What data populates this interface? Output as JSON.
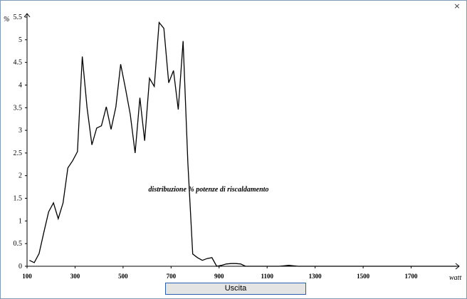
{
  "window": {
    "close_glyph": "×",
    "close_icon": "close-icon"
  },
  "buttons": {
    "exit_label": "Uscita"
  },
  "chart_data": {
    "type": "line",
    "title": "distribuzione % potenze di riscaldamento",
    "ylabel": "%",
    "xlabel": "watt",
    "xlim": [
      100,
      1900
    ],
    "ylim": [
      0,
      5.5
    ],
    "x_ticks": [
      "100",
      "300",
      "500",
      "700",
      "900",
      "1100",
      "1300",
      "1500",
      "1700"
    ],
    "x_tick_values": [
      100,
      300,
      500,
      700,
      900,
      1100,
      1300,
      1500,
      1700
    ],
    "y_ticks": [
      "0",
      "0.5",
      "1",
      "1.5",
      "2",
      "2.5",
      "3",
      "3.5",
      "4",
      "4.5",
      "5",
      "5.5"
    ],
    "y_tick_values": [
      0,
      0.5,
      1,
      1.5,
      2,
      2.5,
      3,
      3.5,
      4,
      4.5,
      5,
      5.5
    ],
    "grid": false,
    "series": [
      {
        "x": [
          110,
          130,
          150,
          170,
          190,
          210,
          230,
          250,
          270,
          290,
          310,
          330,
          350,
          370,
          390,
          410,
          430,
          450,
          470,
          490,
          510,
          530,
          550,
          570,
          590,
          610,
          630,
          650,
          670,
          690,
          710,
          730,
          750,
          770,
          790,
          810,
          830,
          850,
          870,
          890,
          910,
          930,
          950,
          970,
          990,
          1010,
          1030,
          1050,
          1070,
          1090,
          1110,
          1130,
          1150,
          1170,
          1190,
          1210,
          1230,
          1250,
          1270,
          1290,
          1310,
          1330,
          1350,
          1370,
          1390,
          1410,
          1430,
          1450,
          1470,
          1490,
          1510,
          1530,
          1550,
          1570,
          1590,
          1610,
          1630,
          1650,
          1670,
          1690,
          1710,
          1730,
          1750,
          1770,
          1790,
          1810,
          1830,
          1850,
          1870,
          1890
        ],
        "y": [
          0.13,
          0.08,
          0.28,
          0.75,
          1.2,
          1.4,
          1.05,
          1.4,
          2.17,
          2.33,
          2.53,
          4.63,
          3.5,
          2.68,
          3.05,
          3.1,
          3.52,
          3.02,
          3.52,
          4.46,
          3.92,
          3.35,
          2.5,
          3.72,
          2.77,
          4.15,
          3.97,
          5.38,
          5.25,
          4.05,
          4.32,
          3.46,
          4.97,
          2.28,
          0.27,
          0.19,
          0.13,
          0.17,
          0.19,
          0.0,
          0.02,
          0.05,
          0.06,
          0.06,
          0.05,
          0.0,
          0.0,
          0.0,
          0.0,
          0.0,
          0.0,
          0.0,
          0.0,
          0.01,
          0.02,
          0.01,
          0.0,
          0.0,
          0.0,
          0.0,
          0.0,
          0.0,
          0.0,
          0.0,
          0.0,
          0.0,
          0.0,
          0.0,
          0.0,
          0.0,
          0.0,
          0.0,
          0.0,
          0.0,
          0.0,
          0.0,
          0.0,
          0.0,
          0.0,
          0.0,
          0.0,
          0.0,
          0.0,
          0.0,
          0.0,
          0.0,
          0.0,
          0.0,
          0.0,
          0.0
        ]
      }
    ]
  }
}
